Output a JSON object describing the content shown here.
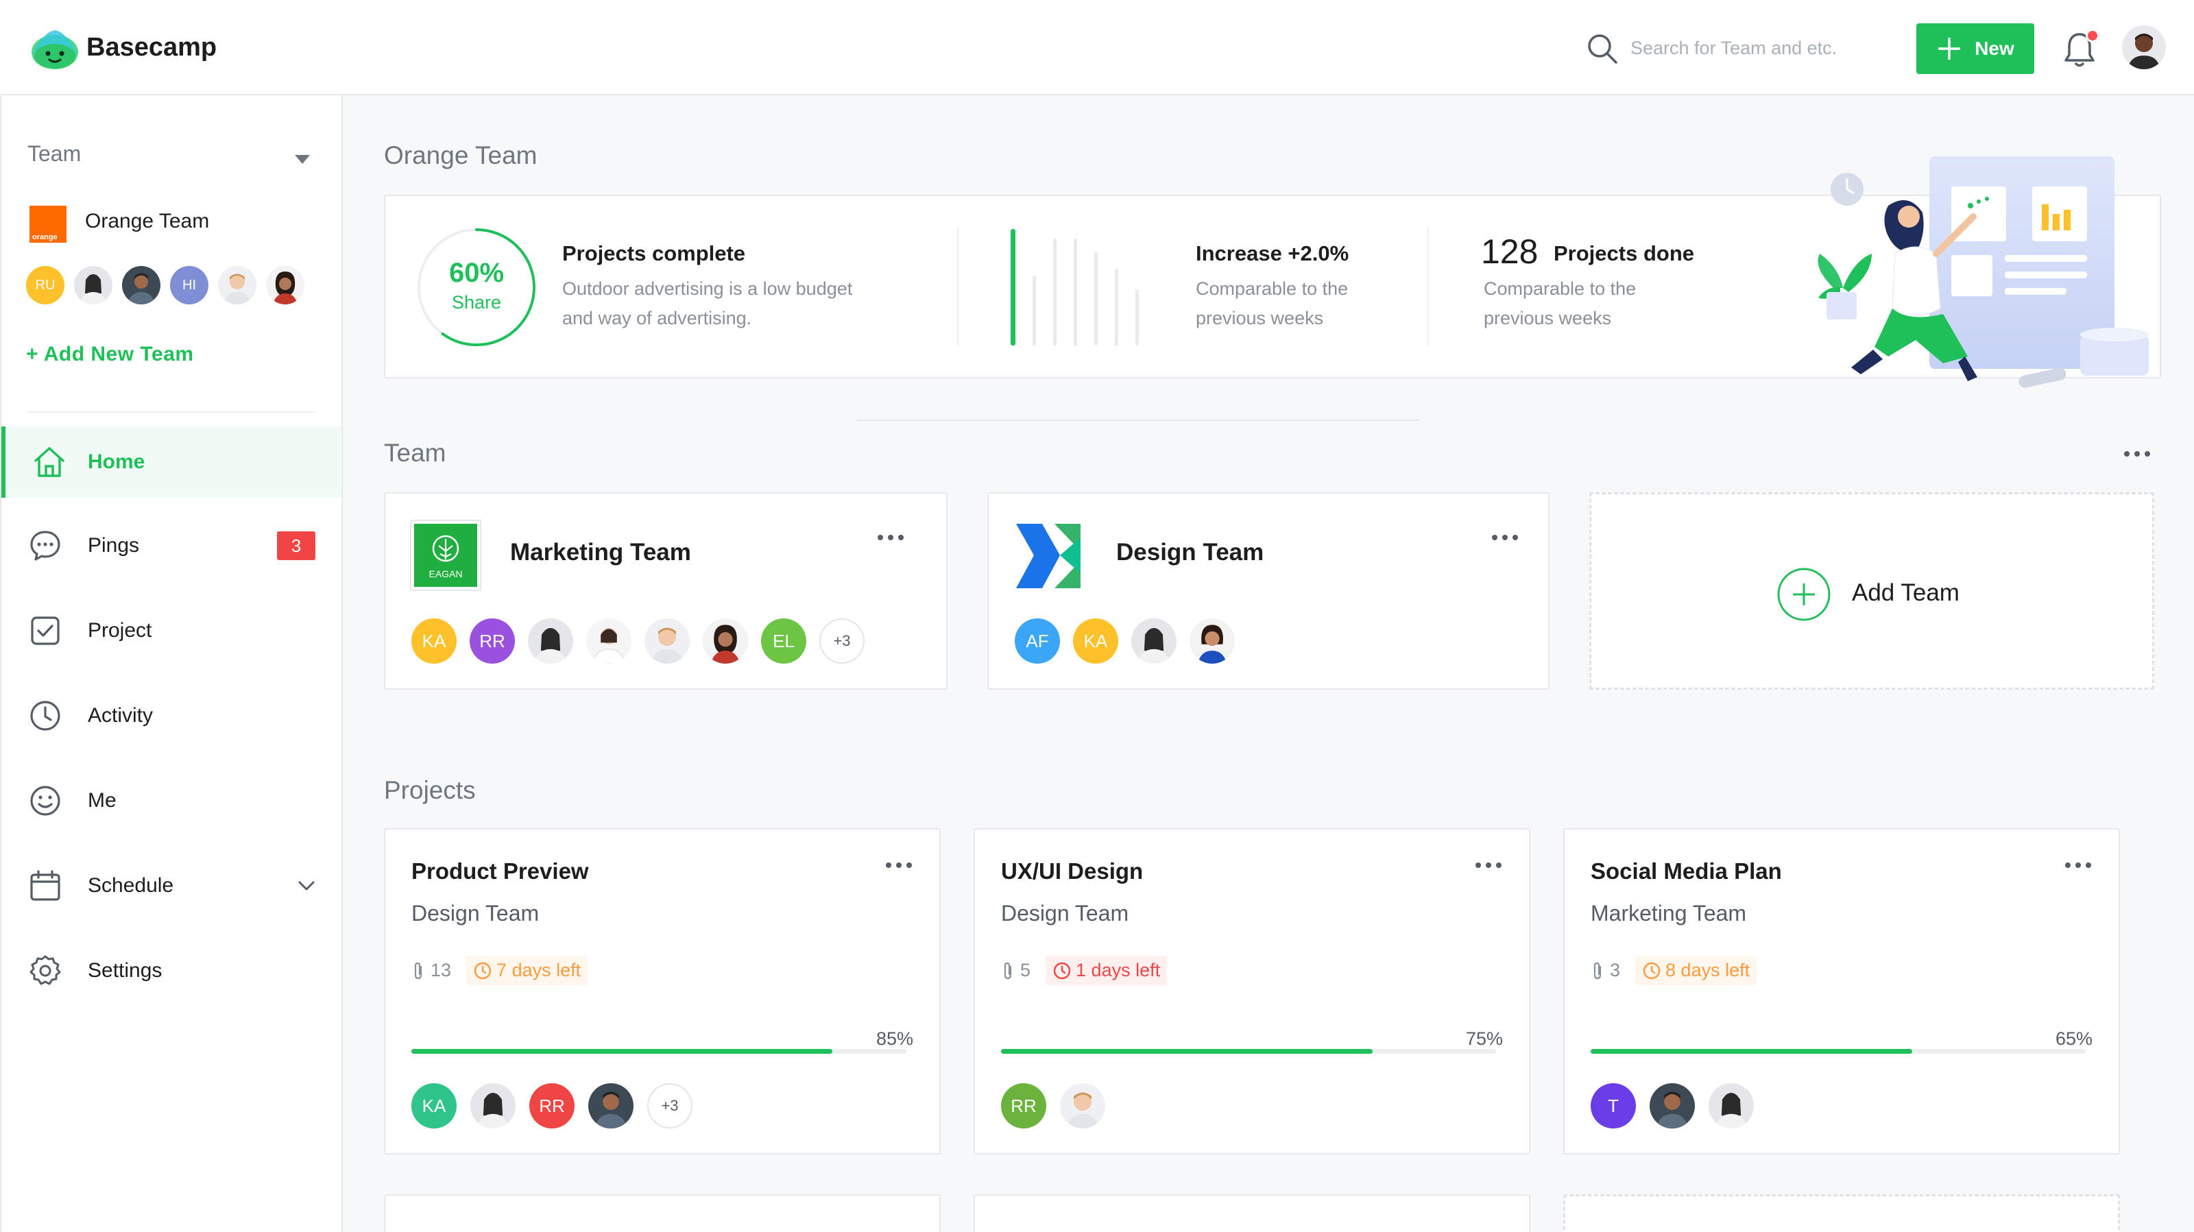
{
  "brand": {
    "name": "Basecamp",
    "accent": "#1fbf59"
  },
  "header": {
    "search_placeholder": "Search for Team and etc.",
    "new_button": "New",
    "icons": [
      "search-icon",
      "plus-icon",
      "bell-icon"
    ]
  },
  "sidebar": {
    "team_label": "Team",
    "current_team": "Orange Team",
    "team_logo_text": "orange",
    "member_initials": [
      "RU",
      "HI"
    ],
    "add_team": "+ Add New Team",
    "nav": [
      {
        "label": "Home",
        "icon": "home-icon",
        "active": true
      },
      {
        "label": "Pings",
        "icon": "chat-icon",
        "badge": "3"
      },
      {
        "label": "Project",
        "icon": "checkbox-icon"
      },
      {
        "label": "Activity",
        "icon": "clock-icon"
      },
      {
        "label": "Me",
        "icon": "smile-icon"
      },
      {
        "label": "Schedule",
        "icon": "calendar-icon"
      },
      {
        "label": "Settings",
        "icon": "gear-icon"
      }
    ]
  },
  "main": {
    "page_title": "Orange Team",
    "stats": {
      "share_percent": "60%",
      "share_fraction": 0.6,
      "share_label": "Share",
      "projects_complete_title": "Projects complete",
      "projects_complete_desc_1": "Outdoor advertising is a low budget",
      "projects_complete_desc_2": "and way of advertising.",
      "increase_title": "Increase +2.0%",
      "increase_desc_1": "Comparable to the",
      "increase_desc_2": "previous weeks",
      "done_number": "128",
      "done_title": "Projects done",
      "done_desc_1": "Comparable to the",
      "done_desc_2": "previous weeks"
    },
    "team_section_title": "Team",
    "teams": [
      {
        "name": "Marketing Team",
        "logo_text": "EAGAN",
        "members": [
          "KA",
          "RR",
          "",
          "",
          "",
          "",
          "EL"
        ],
        "more": "+3"
      },
      {
        "name": "Design Team",
        "members": [
          "AF",
          "KA",
          "",
          ""
        ]
      }
    ],
    "add_team_label": "Add Team",
    "projects_section_title": "Projects",
    "projects": [
      {
        "title": "Product Preview",
        "team": "Design Team",
        "attachments": "13",
        "days": "7 days left",
        "progress": "85%",
        "progress_value": 85,
        "members": [
          "KA",
          "",
          "RR",
          ""
        ],
        "more": "+3"
      },
      {
        "title": "UX/UI Design",
        "team": "Design Team",
        "attachments": "5",
        "days": "1 days left",
        "progress": "75%",
        "progress_value": 75,
        "members": [
          "RR",
          ""
        ]
      },
      {
        "title": "Social Media Plan",
        "team": "Marketing Team",
        "attachments": "3",
        "days": "8 days left",
        "progress": "65%",
        "progress_value": 65,
        "members": [
          "T",
          "",
          ""
        ]
      }
    ]
  }
}
